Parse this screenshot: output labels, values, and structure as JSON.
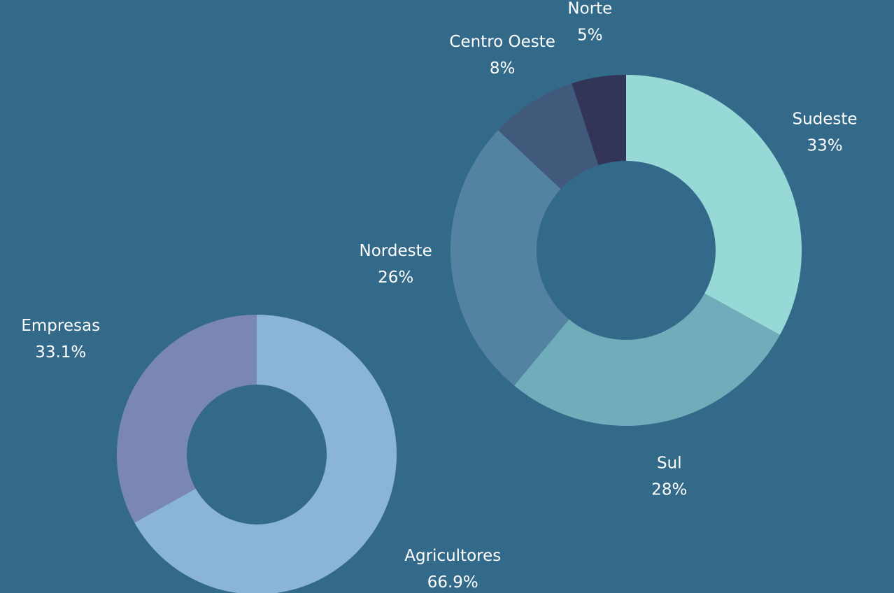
{
  "chart_data": [
    {
      "type": "pie",
      "categories": [
        "Sudeste",
        "Sul",
        "Nordeste",
        "Centro Oeste",
        "Norte"
      ],
      "values": [
        33,
        28,
        26,
        8,
        5
      ],
      "value_labels": [
        "33%",
        "28%",
        "26%",
        "8%",
        "5%"
      ],
      "colors": [
        "#96d9d7",
        "#70adbb",
        "#5383a1",
        "#41597b",
        "#323558"
      ]
    },
    {
      "type": "pie",
      "categories": [
        "Agricultores",
        "Empresas"
      ],
      "values": [
        66.9,
        33.1
      ],
      "value_labels": [
        "66.9%",
        "33.1%"
      ],
      "colors": [
        "#8ab4d8",
        "#7a87b3"
      ]
    }
  ]
}
